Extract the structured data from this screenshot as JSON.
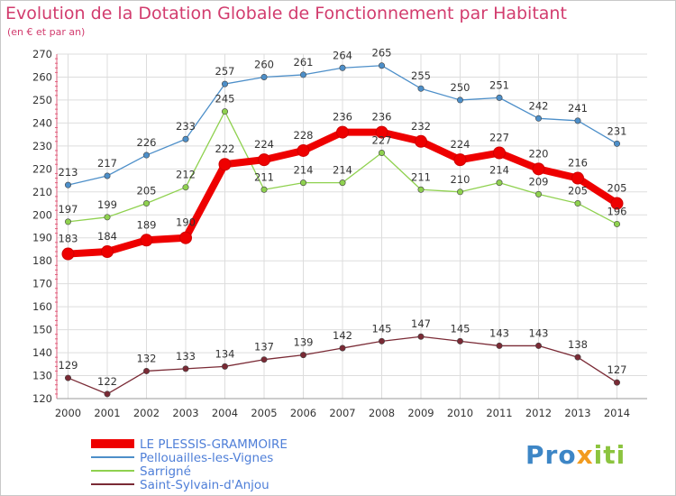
{
  "chart_data": {
    "type": "line",
    "title": "Evolution de la Dotation Globale de Fonctionnement par Habitant",
    "subtitle": "(en € et par an)",
    "xlabel": "",
    "ylabel": "",
    "ylim": [
      120,
      270
    ],
    "y_ticks": [
      120,
      130,
      140,
      150,
      160,
      170,
      180,
      190,
      200,
      210,
      220,
      230,
      240,
      250,
      260,
      270
    ],
    "categories": [
      "2000",
      "2001",
      "2002",
      "2003",
      "2004",
      "2005",
      "2006",
      "2007",
      "2008",
      "2009",
      "2010",
      "2011",
      "2012",
      "2013",
      "2014"
    ],
    "series": [
      {
        "name": "LE PLESSIS-GRAMMOIRE",
        "color": "#ee0000",
        "values": [
          183,
          184,
          189,
          190,
          222,
          224,
          228,
          236,
          236,
          232,
          224,
          227,
          220,
          216,
          205
        ],
        "labels": [
          "183",
          "184",
          "189",
          "190",
          "222",
          "224",
          "228",
          "236",
          "236",
          "232",
          "224",
          "227",
          "220",
          "216",
          "205"
        ]
      },
      {
        "name": "Pellouailles-les-Vignes",
        "color": "#4d8fc9",
        "values": [
          213,
          217,
          226,
          233,
          257,
          260,
          261,
          264,
          265,
          255,
          250,
          251,
          242,
          241,
          231
        ],
        "labels": [
          "213",
          "217",
          "226",
          "233",
          "257",
          "260",
          "261",
          "264",
          "265",
          "255",
          "250",
          "251",
          "242",
          "241",
          "231"
        ]
      },
      {
        "name": "Sarrigné",
        "color": "#8fd14f",
        "values": [
          197,
          199,
          205,
          212,
          245,
          211,
          214,
          214,
          227,
          211,
          210,
          214,
          209,
          205,
          196
        ],
        "labels": [
          "197",
          "199",
          "205",
          "212",
          "245",
          "211",
          "214",
          "214",
          "227",
          "211",
          "210",
          "214",
          "209",
          "205",
          "196"
        ]
      },
      {
        "name": "Saint-Sylvain-d'Anjou",
        "color": "#7a2a35",
        "values": [
          129,
          122,
          132,
          133,
          134,
          137,
          139,
          142,
          145,
          147,
          145,
          143,
          143,
          138,
          127
        ],
        "labels": [
          "129",
          "122",
          "132",
          "133",
          "134",
          "137",
          "139",
          "142",
          "145",
          "147",
          "145",
          "143",
          "143",
          "138",
          "127"
        ]
      }
    ],
    "legend_position": "bottom-left",
    "grid": true
  },
  "logo": {
    "part1": "Pro",
    "part2": "x",
    "part3": "iti"
  }
}
